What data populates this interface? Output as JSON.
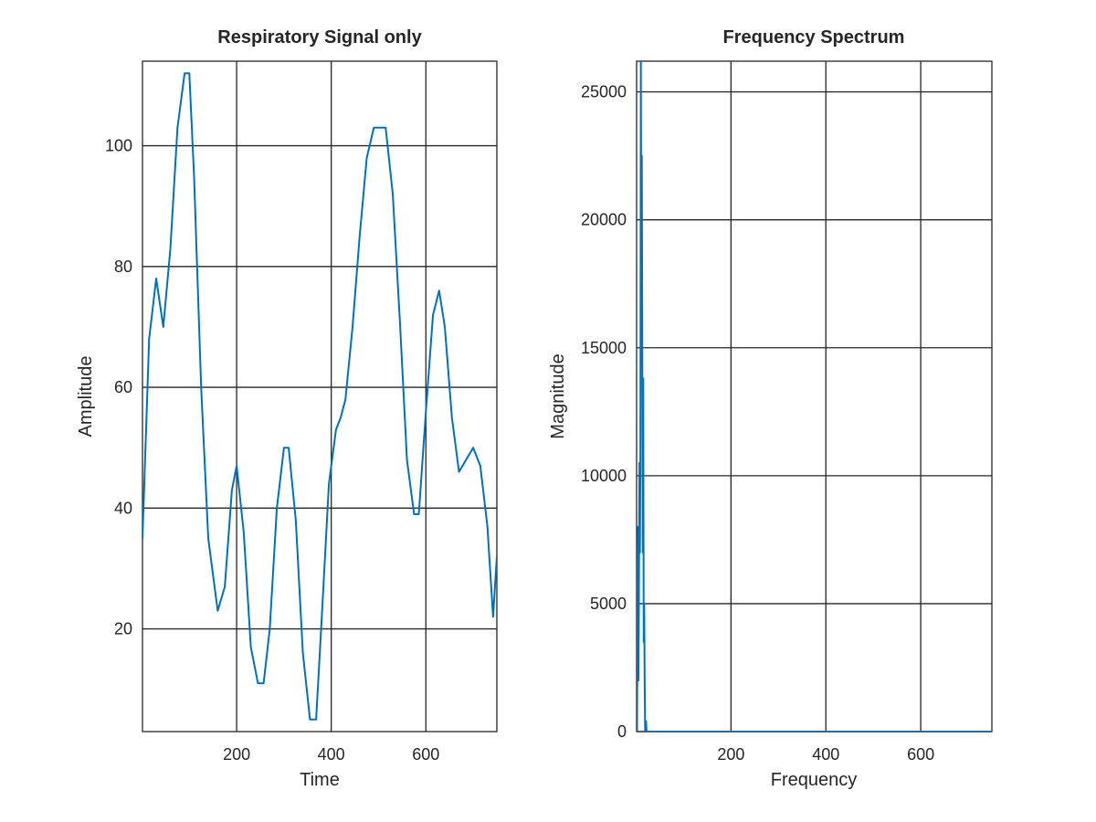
{
  "chart_data": [
    {
      "type": "line",
      "title": "Respiratory Signal only",
      "xlabel": "Time",
      "ylabel": "Amplitude",
      "xlim": [
        1,
        750
      ],
      "ylim": [
        3,
        114
      ],
      "xticks": [
        200,
        400,
        600
      ],
      "yticks": [
        20,
        40,
        60,
        80,
        100
      ],
      "xtick_labels": [
        "200",
        "400",
        "600"
      ],
      "ytick_labels": [
        "20",
        "40",
        "60",
        "80",
        "100"
      ],
      "grid": true,
      "line_color": "#0072bd",
      "series": [
        {
          "x": [
            1,
            15,
            30,
            45,
            60,
            75,
            90,
            100,
            110,
            125,
            140,
            160,
            175,
            190,
            200,
            215,
            230,
            245,
            257,
            270,
            285,
            300,
            310,
            325,
            340,
            355,
            368,
            380,
            395,
            410,
            420,
            430,
            445,
            460,
            475,
            490,
            505,
            515,
            530,
            545,
            560,
            575,
            585,
            600,
            615,
            628,
            640,
            655,
            670,
            685,
            700,
            715,
            730,
            742,
            750
          ],
          "y": [
            35,
            68,
            78,
            70,
            83,
            103,
            112,
            112,
            95,
            60,
            35,
            23,
            27,
            43,
            47,
            36,
            17,
            11,
            11,
            20,
            40,
            50,
            50,
            38,
            16,
            5,
            5,
            22,
            44,
            53,
            55,
            58,
            70,
            85,
            98,
            103,
            103,
            103,
            92,
            71,
            48,
            39,
            39,
            56,
            72,
            76,
            70,
            55,
            46,
            48,
            50,
            47,
            37,
            22,
            32
          ]
        }
      ]
    },
    {
      "type": "line",
      "title": "Frequency Spectrum",
      "xlabel": "Frequency",
      "ylabel": "Magnitude",
      "xlim": [
        1,
        750
      ],
      "ylim": [
        0,
        26200
      ],
      "xticks": [
        200,
        400,
        600
      ],
      "yticks": [
        0,
        5000,
        10000,
        15000,
        20000,
        25000
      ],
      "xtick_labels": [
        "200",
        "400",
        "600"
      ],
      "ytick_labels": [
        "0",
        "5000",
        "10000",
        "15000",
        "20000",
        "25000"
      ],
      "grid": true,
      "line_color": "#0072bd",
      "series": [
        {
          "x": [
            1,
            2,
            3,
            4,
            5,
            6,
            7,
            8,
            9,
            10,
            11,
            12,
            13,
            14,
            15,
            16,
            17,
            18,
            19,
            20,
            21,
            22,
            24,
            30,
            60,
            100,
            200,
            300,
            400,
            500,
            600,
            700,
            750
          ],
          "y": [
            0,
            0,
            7000,
            8000,
            2000,
            6000,
            10500,
            7000,
            10800,
            26200,
            18000,
            22500,
            15000,
            7000,
            13800,
            3500,
            5000,
            2000,
            0,
            0,
            400,
            0,
            0,
            0,
            0,
            0,
            0,
            0,
            0,
            0,
            0,
            0,
            0
          ]
        }
      ]
    }
  ]
}
